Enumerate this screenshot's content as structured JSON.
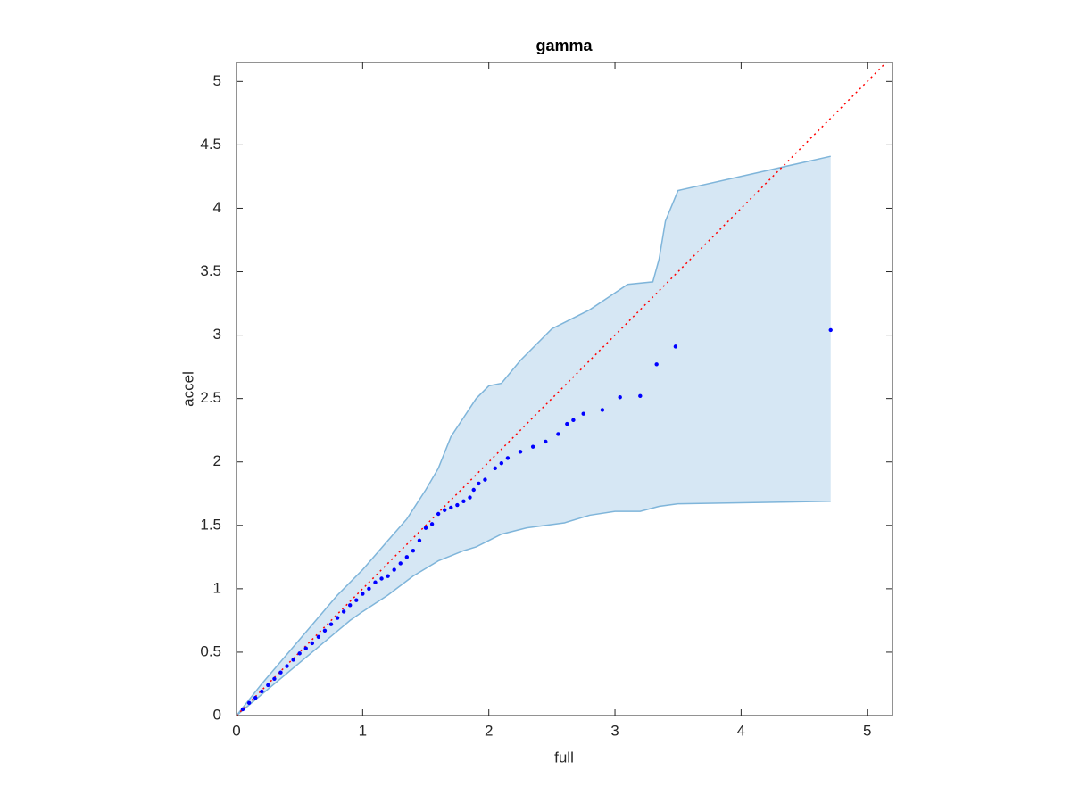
{
  "chart_data": {
    "type": "scatter",
    "title": "gamma",
    "x_label": "full",
    "y_label": "accel",
    "x": [
      0.05,
      0.1,
      0.15,
      0.2,
      0.25,
      0.3,
      0.35,
      0.4,
      0.45,
      0.5,
      0.55,
      0.6,
      0.65,
      0.7,
      0.75,
      0.8,
      0.85,
      0.9,
      0.95,
      1.0,
      1.05,
      1.1,
      1.15,
      1.2,
      1.25,
      1.3,
      1.35,
      1.4,
      1.45,
      1.5,
      1.55,
      1.6,
      1.65,
      1.7,
      1.75,
      1.8,
      1.85,
      1.88,
      1.92,
      1.97,
      2.05,
      2.1,
      2.15,
      2.25,
      2.35,
      2.45,
      2.55,
      2.62,
      2.67,
      2.75,
      2.9,
      3.04,
      3.2,
      3.33,
      3.48,
      4.71
    ],
    "values": [
      0.05,
      0.1,
      0.14,
      0.19,
      0.24,
      0.29,
      0.34,
      0.39,
      0.44,
      0.49,
      0.53,
      0.57,
      0.62,
      0.67,
      0.72,
      0.77,
      0.82,
      0.87,
      0.91,
      0.96,
      1.0,
      1.05,
      1.08,
      1.1,
      1.15,
      1.2,
      1.25,
      1.3,
      1.38,
      1.48,
      1.51,
      1.59,
      1.62,
      1.64,
      1.66,
      1.69,
      1.72,
      1.78,
      1.83,
      1.86,
      1.95,
      1.99,
      2.03,
      2.08,
      2.12,
      2.16,
      2.22,
      2.3,
      2.33,
      2.38,
      2.41,
      2.51,
      2.52,
      2.77,
      2.91,
      3.04
    ],
    "color": "#0000ff",
    "band": {
      "color": "#d6e7f4",
      "edge_color": "#7fb5da",
      "upper": {
        "x": [
          0,
          0.2,
          0.5,
          0.8,
          1.0,
          1.2,
          1.35,
          1.5,
          1.6,
          1.7,
          1.8,
          1.9,
          2.0,
          2.1,
          2.25,
          2.5,
          2.8,
          2.95,
          3.1,
          3.3,
          3.35,
          3.4,
          3.5,
          4.71
        ],
        "values": [
          0,
          0.25,
          0.6,
          0.95,
          1.15,
          1.38,
          1.55,
          1.78,
          1.95,
          2.2,
          2.35,
          2.5,
          2.6,
          2.62,
          2.8,
          3.05,
          3.2,
          3.3,
          3.4,
          3.42,
          3.6,
          3.9,
          4.14,
          4.41
        ]
      },
      "lower": {
        "x": [
          0,
          0.3,
          0.6,
          0.9,
          1.0,
          1.2,
          1.4,
          1.6,
          1.8,
          1.9,
          2.0,
          2.1,
          2.3,
          2.6,
          2.8,
          3.0,
          3.2,
          3.35,
          3.5,
          4.71
        ],
        "values": [
          0,
          0.25,
          0.5,
          0.75,
          0.82,
          0.95,
          1.1,
          1.22,
          1.3,
          1.33,
          1.38,
          1.43,
          1.48,
          1.52,
          1.58,
          1.61,
          1.61,
          1.65,
          1.67,
          1.69
        ]
      }
    },
    "reference_line": {
      "x": [
        0,
        5.2
      ],
      "values": [
        0,
        5.2
      ],
      "color": "#ff0000"
    },
    "xlim": [
      0,
      5.2
    ],
    "ylim": [
      0,
      5.15
    ],
    "xticks": [
      0,
      1,
      2,
      3,
      4,
      5
    ],
    "yticks": [
      0,
      0.5,
      1,
      1.5,
      2,
      2.5,
      3,
      3.5,
      4,
      4.5,
      5
    ]
  }
}
